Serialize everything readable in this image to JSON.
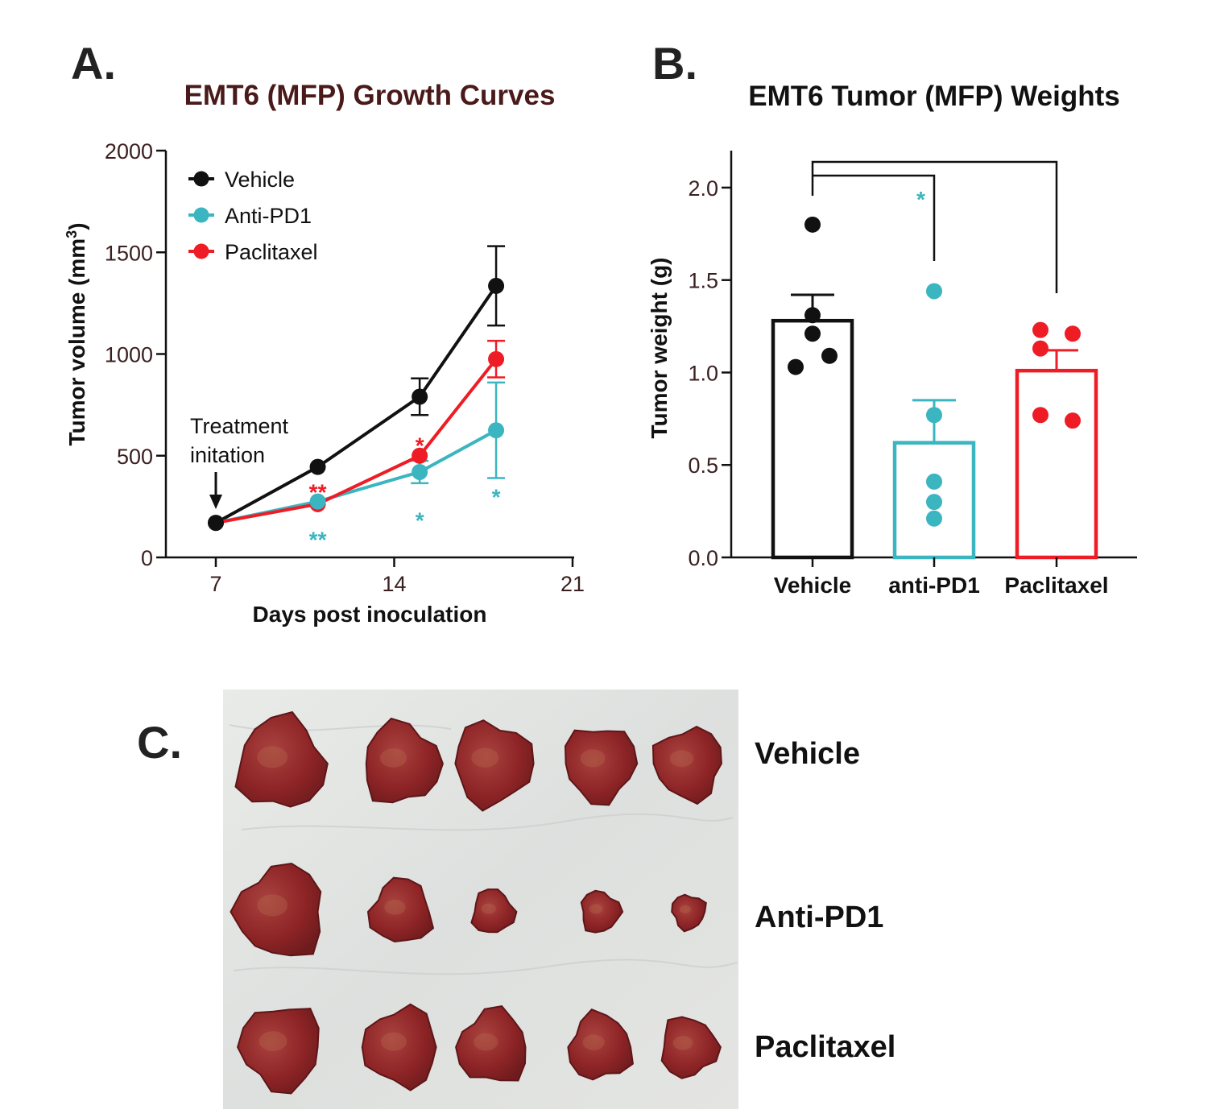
{
  "colors": {
    "vehicle": "#111111",
    "anti_pd1": "#3bb5c0",
    "paclitaxel": "#ee1c25",
    "title_dark_red": "#4a1a1a",
    "tick_dark_red": "#3a1f1f"
  },
  "panels": {
    "a_letter": "A.",
    "b_letter": "B.",
    "c_letter": "C."
  },
  "chart_data": [
    {
      "id": "A",
      "type": "line",
      "title": "EMT6 (MFP) Growth Curves",
      "xlabel": "Days post inoculation",
      "ylabel": "Tumor volume (mm",
      "ylabel_superscript": "3",
      "ylabel_close": ")",
      "xlim": [
        5,
        21
      ],
      "ylim": [
        0,
        2000
      ],
      "xticks": [
        7,
        14,
        21
      ],
      "xtick_labels": [
        "7",
        "14",
        "21"
      ],
      "yticks": [
        0,
        500,
        1000,
        1500,
        2000
      ],
      "ytick_labels": [
        "0",
        "500",
        "1000",
        "1500",
        "2000"
      ],
      "legend_position": "top-left",
      "series": [
        {
          "name": "Vehicle",
          "color": "#111111",
          "x": [
            7,
            11,
            15,
            18
          ],
          "values": [
            170,
            445,
            790,
            1335
          ],
          "err": [
            0,
            0,
            90,
            195
          ]
        },
        {
          "name": "Anti-PD1",
          "color": "#3bb5c0",
          "x": [
            7,
            11,
            15,
            18
          ],
          "values": [
            170,
            275,
            420,
            625
          ],
          "err": [
            0,
            0,
            55,
            235
          ]
        },
        {
          "name": "Paclitaxel",
          "color": "#ee1c25",
          "x": [
            7,
            11,
            15,
            18
          ],
          "values": [
            170,
            262,
            500,
            975
          ],
          "err": [
            0,
            0,
            0,
            90
          ]
        }
      ],
      "annotation": {
        "line1": "Treatment",
        "line2": "initation",
        "x": 7
      },
      "significance": [
        {
          "label": "**",
          "color": "#ee1c25",
          "x": 11,
          "y": 355
        },
        {
          "label": "**",
          "color": "#3bb5c0",
          "x": 11,
          "y": 120
        },
        {
          "label": "*",
          "color": "#ee1c25",
          "x": 15,
          "y": 585
        },
        {
          "label": "*",
          "color": "#3bb5c0",
          "x": 15,
          "y": 215
        },
        {
          "label": "*",
          "color": "#3bb5c0",
          "x": 18,
          "y": 330
        }
      ]
    },
    {
      "id": "B",
      "type": "bar",
      "title": "EMT6 Tumor (MFP) Weights",
      "xlabel": "",
      "ylabel": "Tumor weight (g)",
      "ylim": [
        0,
        2.2
      ],
      "yticks": [
        0,
        0.5,
        1.0,
        1.5,
        2.0
      ],
      "ytick_labels": [
        "0.0",
        "0.5",
        "1.0",
        "1.5",
        "2.0"
      ],
      "categories": [
        "Vehicle",
        "anti-PD1",
        "Paclitaxel"
      ],
      "values": [
        1.28,
        0.62,
        1.01
      ],
      "sem": [
        0.14,
        0.23,
        0.11
      ],
      "colors": [
        "#111111",
        "#3bb5c0",
        "#ee1c25"
      ],
      "points": [
        [
          1.8,
          1.31,
          1.21,
          1.09,
          1.03
        ],
        [
          1.44,
          0.77,
          0.41,
          0.3,
          0.21
        ],
        [
          1.23,
          1.13,
          1.21,
          0.77,
          0.74
        ]
      ],
      "significance": [
        {
          "label": "*",
          "color": "#3bb5c0",
          "from": 0,
          "to": 1
        }
      ]
    }
  ],
  "photo": {
    "rows": [
      {
        "label": "Vehicle"
      },
      {
        "label": "Anti-PD1"
      },
      {
        "label": "Paclitaxel"
      }
    ],
    "tumor_sizes": [
      [
        1.0,
        0.88,
        0.9,
        0.82,
        0.78
      ],
      [
        1.0,
        0.7,
        0.48,
        0.45,
        0.38
      ],
      [
        0.92,
        0.85,
        0.8,
        0.72,
        0.65
      ]
    ]
  }
}
